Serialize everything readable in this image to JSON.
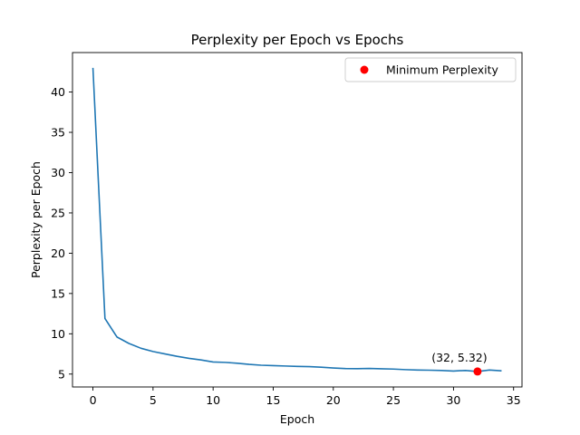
{
  "chart_data": {
    "type": "line",
    "title": "Perplexity per Epoch vs Epochs",
    "xlabel": "Epoch",
    "ylabel": "Perplexity per Epoch",
    "xlim": [
      -1.7,
      35.7
    ],
    "ylim": [
      3.4,
      44.9
    ],
    "xticks": [
      0,
      5,
      10,
      15,
      20,
      25,
      30,
      35
    ],
    "yticks": [
      5,
      10,
      15,
      20,
      25,
      30,
      35,
      40
    ],
    "grid": false,
    "legend_position": "top-right",
    "series": [
      {
        "x": [
          0,
          1,
          2,
          3,
          4,
          5,
          6,
          7,
          8,
          9,
          10,
          11,
          12,
          13,
          14,
          15,
          16,
          17,
          18,
          19,
          20,
          21,
          22,
          23,
          24,
          25,
          26,
          27,
          28,
          29,
          30,
          31,
          32,
          33,
          34
        ],
        "values": [
          43.0,
          11.9,
          9.6,
          8.8,
          8.2,
          7.8,
          7.5,
          7.2,
          6.95,
          6.75,
          6.5,
          6.45,
          6.35,
          6.2,
          6.1,
          6.05,
          6.0,
          5.95,
          5.92,
          5.85,
          5.75,
          5.68,
          5.67,
          5.7,
          5.66,
          5.62,
          5.55,
          5.5,
          5.48,
          5.45,
          5.38,
          5.45,
          5.32,
          5.5,
          5.4
        ],
        "color": "#1f77b4"
      },
      {
        "name": "Minimum Perplexity",
        "type": "scatter",
        "x": [
          32
        ],
        "values": [
          5.32
        ],
        "color": "#ff0000"
      }
    ],
    "annotations": [
      {
        "text": "(32, 5.32)",
        "x": 32,
        "y": 5.32
      }
    ]
  }
}
